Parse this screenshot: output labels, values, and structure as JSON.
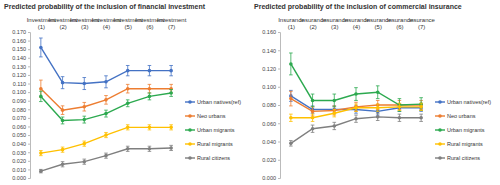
{
  "chart_data": [
    {
      "type": "line",
      "title": "Predicted probability of the inclusion of financial investment",
      "categories": [
        "Investment (1)",
        "Investment (2)",
        "Investment (3)",
        "Investment (4)",
        "Investment (5)",
        "Investment (6)",
        "Investment (7)"
      ],
      "ylim": [
        0,
        0.17
      ],
      "yticks": [
        {
          "value": 0,
          "label": "0.000"
        },
        {
          "value": 0.01,
          "label": "0.010"
        },
        {
          "value": 0.02,
          "label": "0.020"
        },
        {
          "value": 0.03,
          "label": "0.030"
        },
        {
          "value": 0.04,
          "label": "0.040"
        },
        {
          "value": 0.05,
          "label": "0.050"
        },
        {
          "value": 0.06,
          "label": "0.060"
        },
        {
          "value": 0.07,
          "label": "0.070"
        },
        {
          "value": 0.08,
          "label": "0.080"
        },
        {
          "value": 0.09,
          "label": "0.090"
        },
        {
          "value": 0.1,
          "label": "0.100"
        },
        {
          "value": 0.11,
          "label": "0.110"
        },
        {
          "value": 0.12,
          "label": "0.120"
        },
        {
          "value": 0.13,
          "label": "0.130"
        },
        {
          "value": 0.14,
          "label": "0.140"
        },
        {
          "value": 0.15,
          "label": "0.150"
        },
        {
          "value": 0.16,
          "label": "0.160"
        },
        {
          "value": 0.17,
          "label": "0.170"
        }
      ],
      "marker": "circle",
      "legend": "right",
      "series": [
        {
          "name": "Urban natives(ref)",
          "color": "#4472c4",
          "values": [
            0.152,
            0.111,
            0.11,
            0.112,
            0.125,
            0.125,
            0.125
          ],
          "errors": [
            0.011,
            0.007,
            0.007,
            0.007,
            0.006,
            0.006,
            0.006
          ]
        },
        {
          "name": "Neo urbans",
          "color": "#ed7d31",
          "values": [
            0.104,
            0.079,
            0.083,
            0.091,
            0.104,
            0.104,
            0.104
          ],
          "errors": [
            0.01,
            0.005,
            0.005,
            0.005,
            0.005,
            0.005,
            0.005
          ]
        },
        {
          "name": "Urban migrants",
          "color": "#2ca94f",
          "values": [
            0.095,
            0.067,
            0.068,
            0.075,
            0.087,
            0.095,
            0.099
          ],
          "errors": [
            0.006,
            0.004,
            0.004,
            0.004,
            0.004,
            0.004,
            0.004
          ]
        },
        {
          "name": "Rural migrants",
          "color": "#ffc000",
          "values": [
            0.029,
            0.033,
            0.04,
            0.05,
            0.059,
            0.059,
            0.059
          ],
          "errors": [
            0.003,
            0.003,
            0.003,
            0.003,
            0.003,
            0.003,
            0.003
          ]
        },
        {
          "name": "Rural citizens",
          "color": "#7f7f7f",
          "values": [
            0.008,
            0.016,
            0.019,
            0.026,
            0.034,
            0.034,
            0.035
          ],
          "errors": [
            0.002,
            0.003,
            0.003,
            0.003,
            0.003,
            0.003,
            0.003
          ]
        }
      ]
    },
    {
      "type": "line",
      "title": "Predicted probability of the inclusion of commercial insurance",
      "categories": [
        "Insurance (1)",
        "Insurance (2)",
        "Insurance (3)",
        "Insurance (4)",
        "Insurance (5)",
        "Insurance (6)",
        "Insurance (7)"
      ],
      "ylim": [
        0,
        0.16
      ],
      "yticks": [
        {
          "value": 0,
          "label": "0.000"
        },
        {
          "value": 0.02,
          "label": "0.020"
        },
        {
          "value": 0.04,
          "label": "0.040"
        },
        {
          "value": 0.06,
          "label": "0.060"
        },
        {
          "value": 0.08,
          "label": "0.080"
        },
        {
          "value": 0.1,
          "label": "0.100"
        },
        {
          "value": 0.12,
          "label": "0.120"
        },
        {
          "value": 0.14,
          "label": "0.140"
        },
        {
          "value": 0.16,
          "label": "0.160"
        }
      ],
      "marker": "circle",
      "legend": "right",
      "series": [
        {
          "name": "Urban natives(ref)",
          "color": "#4472c4",
          "values": [
            0.09,
            0.075,
            0.075,
            0.075,
            0.073,
            0.077,
            0.077
          ],
          "errors": [
            0.006,
            0.004,
            0.004,
            0.004,
            0.004,
            0.004,
            0.004
          ]
        },
        {
          "name": "Neo urbans",
          "color": "#ed7d31",
          "values": [
            0.087,
            0.073,
            0.074,
            0.078,
            0.08,
            0.08,
            0.08
          ],
          "errors": [
            0.008,
            0.005,
            0.005,
            0.005,
            0.005,
            0.005,
            0.005
          ]
        },
        {
          "name": "Urban migrants",
          "color": "#2ca94f",
          "values": [
            0.125,
            0.085,
            0.085,
            0.092,
            0.094,
            0.08,
            0.081
          ],
          "errors": [
            0.012,
            0.007,
            0.007,
            0.007,
            0.007,
            0.007,
            0.007
          ]
        },
        {
          "name": "Rural migrants",
          "color": "#ffc000",
          "values": [
            0.066,
            0.066,
            0.071,
            0.077,
            0.077,
            0.078,
            0.078
          ],
          "errors": [
            0.004,
            0.004,
            0.004,
            0.004,
            0.004,
            0.004,
            0.004
          ]
        },
        {
          "name": "Rural citizens",
          "color": "#7f7f7f",
          "values": [
            0.038,
            0.054,
            0.057,
            0.065,
            0.067,
            0.066,
            0.066
          ],
          "errors": [
            0.003,
            0.004,
            0.004,
            0.004,
            0.004,
            0.004,
            0.004
          ]
        }
      ]
    }
  ]
}
